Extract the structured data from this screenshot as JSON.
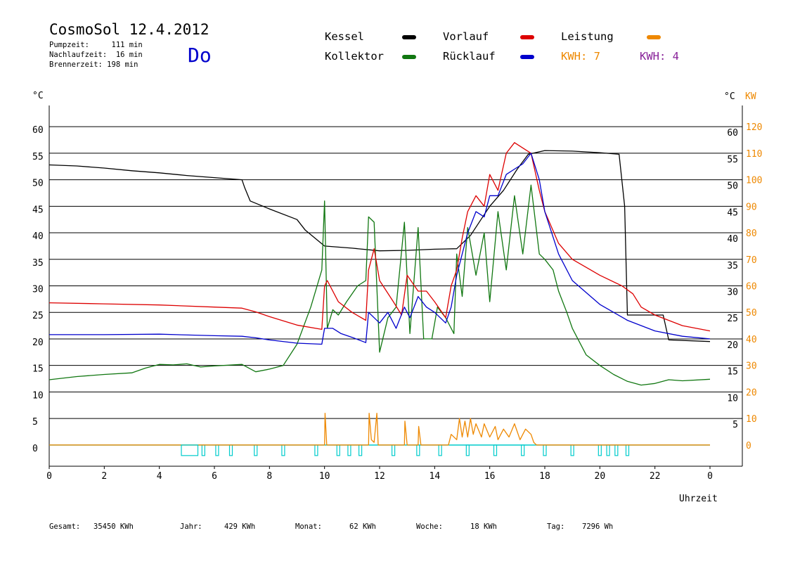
{
  "header": {
    "title": "CosmoSol 12.4.2012",
    "stats": [
      "Pumpzeit:     111 min",
      "Nachlaufzeit:  16 min",
      "Brennerzeit: 198 min"
    ],
    "weekday": "Do"
  },
  "legend": [
    {
      "label": "Kessel",
      "color": "#000000"
    },
    {
      "label": "Kollektor",
      "color": "#117711"
    },
    {
      "label": "Vorlauf",
      "color": "#dd0000"
    },
    {
      "label": "Rücklauf",
      "color": "#0000cc"
    },
    {
      "label": "Leistung",
      "color": "#ee8800"
    }
  ],
  "kwh": [
    {
      "label": "KWH: 7",
      "color": "#ee8800"
    },
    {
      "label": "KWH: 4",
      "color": "#882299"
    }
  ],
  "axes": {
    "left_unit": "°C",
    "right_unit_c": "°C",
    "right_unit_kw": "KW",
    "xlabel": "Uhrzeit"
  },
  "footer": [
    {
      "label": "Gesamt:",
      "value": "35450 KWh"
    },
    {
      "label": "Jahr:",
      "value": "429 KWh"
    },
    {
      "label": "Monat:",
      "value": "62 KWh"
    },
    {
      "label": "Woche:",
      "value": "18 KWh"
    },
    {
      "label": "Tag:",
      "value": "7296 Wh"
    }
  ],
  "chart_data": {
    "type": "line",
    "x_unit": "hour",
    "xlim": [
      0,
      24
    ],
    "ylim": [
      -4,
      64
    ],
    "y2lim": [
      -8,
      128
    ],
    "grid": true,
    "x_ticks": [
      "0",
      "2",
      "4",
      "6",
      "8",
      "10",
      "12",
      "14",
      "16",
      "18",
      "20",
      "22",
      "0"
    ],
    "y_ticks": [
      "0",
      "5",
      "10",
      "15",
      "20",
      "25",
      "30",
      "35",
      "40",
      "45",
      "50",
      "55",
      "60"
    ],
    "y2_ticks": [
      "0",
      "10",
      "20",
      "30",
      "40",
      "50",
      "60",
      "70",
      "80",
      "90",
      "100",
      "110",
      "120"
    ],
    "series": [
      {
        "name": "Kessel",
        "color": "#000000",
        "points": [
          [
            0,
            52.8
          ],
          [
            1,
            52.6
          ],
          [
            2,
            52.2
          ],
          [
            3,
            51.7
          ],
          [
            4,
            51.3
          ],
          [
            5,
            50.8
          ],
          [
            6,
            50.4
          ],
          [
            7,
            50.0
          ],
          [
            7.1,
            48.5
          ],
          [
            7.3,
            46
          ],
          [
            8,
            44.5
          ],
          [
            9,
            42.5
          ],
          [
            9.3,
            40.5
          ],
          [
            10,
            37.5
          ],
          [
            11,
            37.1
          ],
          [
            12,
            36.6
          ],
          [
            13,
            36.7
          ],
          [
            14,
            36.9
          ],
          [
            14.8,
            37
          ],
          [
            15.3,
            39.5
          ],
          [
            16,
            45
          ],
          [
            16.5,
            48
          ],
          [
            17,
            52
          ],
          [
            17.4,
            54.8
          ],
          [
            18,
            55.5
          ],
          [
            19,
            55.4
          ],
          [
            20,
            55.1
          ],
          [
            20.7,
            54.8
          ],
          [
            20.9,
            45
          ],
          [
            21.0,
            24.5
          ],
          [
            22.3,
            24.5
          ],
          [
            22.5,
            19.8
          ],
          [
            24,
            19.5
          ]
        ]
      },
      {
        "name": "Kollektor",
        "color": "#117711",
        "points": [
          [
            0,
            12.3
          ],
          [
            1,
            12.9
          ],
          [
            2,
            13.3
          ],
          [
            3,
            13.6
          ],
          [
            3.5,
            14.5
          ],
          [
            4,
            15.2
          ],
          [
            4.5,
            15.1
          ],
          [
            5,
            15.3
          ],
          [
            5.5,
            14.7
          ],
          [
            6,
            14.9
          ],
          [
            7,
            15.2
          ],
          [
            7.5,
            13.8
          ],
          [
            8,
            14.3
          ],
          [
            8.5,
            15
          ],
          [
            9,
            19
          ],
          [
            9.5,
            26
          ],
          [
            9.9,
            33
          ],
          [
            10.0,
            46
          ],
          [
            10.1,
            22
          ],
          [
            10.3,
            25.5
          ],
          [
            10.5,
            24.5
          ],
          [
            10.8,
            27
          ],
          [
            11.2,
            30
          ],
          [
            11.5,
            31
          ],
          [
            11.6,
            43
          ],
          [
            11.8,
            42
          ],
          [
            12.0,
            17.5
          ],
          [
            12.3,
            24
          ],
          [
            12.6,
            26
          ],
          [
            12.9,
            42
          ],
          [
            13.1,
            21
          ],
          [
            13.4,
            41
          ],
          [
            13.6,
            20
          ],
          [
            13.9,
            20
          ],
          [
            14.1,
            26
          ],
          [
            14.4,
            24
          ],
          [
            14.7,
            21
          ],
          [
            14.8,
            36
          ],
          [
            15.0,
            28
          ],
          [
            15.2,
            41
          ],
          [
            15.5,
            32
          ],
          [
            15.8,
            40
          ],
          [
            16.0,
            27
          ],
          [
            16.3,
            44
          ],
          [
            16.6,
            33
          ],
          [
            16.9,
            47
          ],
          [
            17.2,
            36
          ],
          [
            17.5,
            49
          ],
          [
            17.8,
            36
          ],
          [
            18.0,
            35
          ],
          [
            18.3,
            33
          ],
          [
            18.5,
            29
          ],
          [
            18.8,
            25
          ],
          [
            19.0,
            22
          ],
          [
            19.5,
            17
          ],
          [
            20,
            15
          ],
          [
            20.5,
            13.3
          ],
          [
            21,
            12
          ],
          [
            21.5,
            11.3
          ],
          [
            22,
            11.6
          ],
          [
            22.5,
            12.3
          ],
          [
            23,
            12.1
          ],
          [
            24,
            12.4
          ]
        ]
      },
      {
        "name": "Vorlauf",
        "color": "#dd0000",
        "points": [
          [
            0,
            26.8
          ],
          [
            2,
            26.6
          ],
          [
            4,
            26.4
          ],
          [
            6,
            26.0
          ],
          [
            7,
            25.8
          ],
          [
            7.5,
            25.1
          ],
          [
            8,
            24.2
          ],
          [
            9,
            22.6
          ],
          [
            9.9,
            21.8
          ],
          [
            10.0,
            30
          ],
          [
            10.1,
            31
          ],
          [
            10.5,
            27
          ],
          [
            11.0,
            25
          ],
          [
            11.5,
            23.5
          ],
          [
            11.6,
            33
          ],
          [
            11.8,
            37
          ],
          [
            12.0,
            31
          ],
          [
            12.5,
            27
          ],
          [
            12.8,
            24.5
          ],
          [
            13.0,
            32
          ],
          [
            13.4,
            29
          ],
          [
            13.7,
            29
          ],
          [
            14.0,
            27
          ],
          [
            14.4,
            24
          ],
          [
            14.6,
            30
          ],
          [
            14.8,
            33
          ],
          [
            15.0,
            39
          ],
          [
            15.2,
            44
          ],
          [
            15.5,
            47
          ],
          [
            15.8,
            45
          ],
          [
            16.0,
            51
          ],
          [
            16.3,
            48
          ],
          [
            16.6,
            55
          ],
          [
            16.9,
            57
          ],
          [
            17.2,
            56
          ],
          [
            17.5,
            55
          ],
          [
            17.8,
            48
          ],
          [
            18,
            44
          ],
          [
            18.5,
            38
          ],
          [
            19,
            35
          ],
          [
            20,
            32
          ],
          [
            20.8,
            30
          ],
          [
            21.2,
            28.5
          ],
          [
            21.5,
            26
          ],
          [
            22,
            24.5
          ],
          [
            23,
            22.5
          ],
          [
            24,
            21.5
          ]
        ]
      },
      {
        "name": "Rücklauf",
        "color": "#0000cc",
        "points": [
          [
            0,
            20.8
          ],
          [
            2,
            20.8
          ],
          [
            4,
            20.9
          ],
          [
            6,
            20.6
          ],
          [
            7,
            20.5
          ],
          [
            7.5,
            20.2
          ],
          [
            8,
            19.8
          ],
          [
            9,
            19.2
          ],
          [
            9.9,
            19.0
          ],
          [
            10.0,
            22
          ],
          [
            10.3,
            22
          ],
          [
            10.6,
            21
          ],
          [
            11.0,
            20.3
          ],
          [
            11.5,
            19.3
          ],
          [
            11.6,
            25
          ],
          [
            12.0,
            23
          ],
          [
            12.3,
            25
          ],
          [
            12.6,
            22
          ],
          [
            12.9,
            26
          ],
          [
            13.1,
            24
          ],
          [
            13.4,
            28
          ],
          [
            13.7,
            26
          ],
          [
            14.0,
            25
          ],
          [
            14.4,
            23
          ],
          [
            14.6,
            26
          ],
          [
            14.8,
            32
          ],
          [
            15.0,
            36
          ],
          [
            15.2,
            40
          ],
          [
            15.5,
            44
          ],
          [
            15.8,
            43
          ],
          [
            16.0,
            47
          ],
          [
            16.3,
            47
          ],
          [
            16.6,
            51
          ],
          [
            16.9,
            52
          ],
          [
            17.2,
            53
          ],
          [
            17.5,
            55
          ],
          [
            17.8,
            50
          ],
          [
            18,
            44
          ],
          [
            18.5,
            36
          ],
          [
            19,
            31
          ],
          [
            20,
            26.5
          ],
          [
            21,
            23.5
          ],
          [
            22,
            21.5
          ],
          [
            23,
            20.5
          ],
          [
            24,
            20
          ]
        ]
      },
      {
        "name": "Leistung",
        "color": "#ee8800",
        "axis": "y2",
        "points": [
          [
            0,
            0
          ],
          [
            10.0,
            0
          ],
          [
            10.02,
            12
          ],
          [
            10.08,
            0
          ],
          [
            11.6,
            0
          ],
          [
            11.62,
            12
          ],
          [
            11.7,
            2
          ],
          [
            11.8,
            1
          ],
          [
            11.9,
            12
          ],
          [
            11.95,
            0
          ],
          [
            12.9,
            0
          ],
          [
            12.92,
            9
          ],
          [
            13.0,
            0
          ],
          [
            13.4,
            0
          ],
          [
            13.42,
            7
          ],
          [
            13.5,
            0
          ],
          [
            14.5,
            0
          ],
          [
            14.6,
            4
          ],
          [
            14.8,
            2
          ],
          [
            14.9,
            10
          ],
          [
            15.0,
            3
          ],
          [
            15.1,
            9
          ],
          [
            15.2,
            3
          ],
          [
            15.3,
            10
          ],
          [
            15.4,
            4
          ],
          [
            15.5,
            8
          ],
          [
            15.7,
            3
          ],
          [
            15.8,
            8
          ],
          [
            16.0,
            3
          ],
          [
            16.2,
            7
          ],
          [
            16.3,
            2
          ],
          [
            16.5,
            6
          ],
          [
            16.7,
            3
          ],
          [
            16.9,
            8
          ],
          [
            17.1,
            2
          ],
          [
            17.3,
            6
          ],
          [
            17.5,
            4
          ],
          [
            17.6,
            1
          ],
          [
            17.7,
            0
          ],
          [
            24,
            0
          ]
        ]
      },
      {
        "name": "Brenner",
        "color": "#00cccc",
        "points": [
          [
            0,
            0
          ],
          [
            4.8,
            0
          ],
          [
            4.8,
            -2
          ],
          [
            5.4,
            -2
          ],
          [
            5.4,
            0
          ],
          [
            24,
            0
          ]
        ]
      }
    ]
  }
}
